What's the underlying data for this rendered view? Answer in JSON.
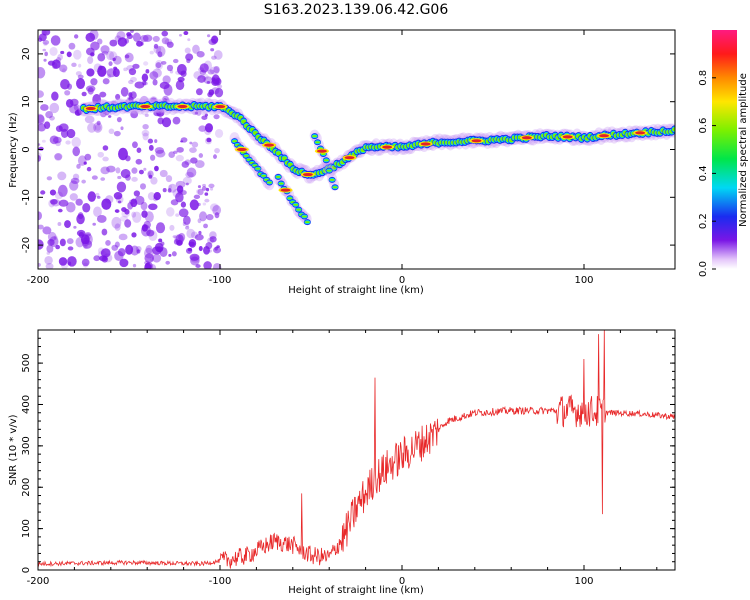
{
  "title": "S163.2023.139.06.42.G06",
  "colors": {
    "snr_line": "#e8292a",
    "track_core": "#e0202a",
    "noise": "#7a16e6"
  },
  "chart_data": [
    {
      "type": "heatmap",
      "xlabel": "Height of straight line (km)",
      "ylabel": "Frequency (Hz)",
      "xlim": [
        -200,
        150
      ],
      "ylim": [
        -25,
        25
      ],
      "x_ticks": [
        -200,
        -100,
        0,
        100
      ],
      "y_ticks": [
        20,
        10,
        0,
        -10,
        -20
      ],
      "colorbar": {
        "label": "Normalized spectral amplitude",
        "range": [
          0.0,
          1.0
        ],
        "ticks": [
          "0.0",
          "0.2",
          "0.4",
          "0.6",
          "0.8"
        ],
        "colormap": "rainbow (purple-blue-cyan-green-yellow-red-magenta)"
      },
      "main_track": [
        {
          "x": -175,
          "f": 8.5
        },
        {
          "x": -150,
          "f": 9.0
        },
        {
          "x": -125,
          "f": 9.0
        },
        {
          "x": -100,
          "f": 9.0
        },
        {
          "x": -90,
          "f": 7.0
        },
        {
          "x": -80,
          "f": 3.0
        },
        {
          "x": -70,
          "f": 0.0
        },
        {
          "x": -60,
          "f": -4.0
        },
        {
          "x": -50,
          "f": -5.5
        },
        {
          "x": -40,
          "f": -4.0
        },
        {
          "x": -30,
          "f": -2.0
        },
        {
          "x": -20,
          "f": 0.5
        },
        {
          "x": 0,
          "f": 0.5
        },
        {
          "x": 20,
          "f": 1.5
        },
        {
          "x": 40,
          "f": 1.8
        },
        {
          "x": 60,
          "f": 2.2
        },
        {
          "x": 80,
          "f": 2.8
        },
        {
          "x": 100,
          "f": 2.5
        },
        {
          "x": 120,
          "f": 3.2
        },
        {
          "x": 150,
          "f": 4.0
        }
      ],
      "secondary_tracks": [
        [
          {
            "x": -92,
            "f": 2.0
          },
          {
            "x": -82,
            "f": -3.0
          },
          {
            "x": -72,
            "f": -7.5
          }
        ],
        [
          {
            "x": -68,
            "f": -6.0
          },
          {
            "x": -60,
            "f": -11.0
          },
          {
            "x": -52,
            "f": -15.0
          }
        ],
        [
          {
            "x": -48,
            "f": 3.0
          },
          {
            "x": -42,
            "f": -2.0
          },
          {
            "x": -36,
            "f": -9.0
          }
        ]
      ],
      "noise_region": [
        -200,
        -100
      ]
    },
    {
      "type": "line",
      "xlabel": "Height of straight line (km)",
      "ylabel": "SNR (10 * v/v)",
      "xlim": [
        -200,
        150
      ],
      "ylim": [
        0,
        580
      ],
      "x_ticks": [
        -200,
        -100,
        0,
        100
      ],
      "y_ticks": [
        0,
        100,
        200,
        300,
        400,
        500
      ],
      "series": [
        {
          "envelope": [
            {
              "x": -200,
              "snr": 15
            },
            {
              "x": -150,
              "snr": 18
            },
            {
              "x": -110,
              "snr": 15
            },
            {
              "x": -95,
              "snr": 25
            },
            {
              "x": -85,
              "snr": 35
            },
            {
              "x": -70,
              "snr": 70
            },
            {
              "x": -60,
              "snr": 60
            },
            {
              "x": -50,
              "snr": 35
            },
            {
              "x": -40,
              "snr": 30
            },
            {
              "x": -32,
              "snr": 80
            },
            {
              "x": -25,
              "snr": 150
            },
            {
              "x": -15,
              "snr": 220
            },
            {
              "x": -5,
              "snr": 260
            },
            {
              "x": 5,
              "snr": 290
            },
            {
              "x": 15,
              "snr": 320
            },
            {
              "x": 25,
              "snr": 360
            },
            {
              "x": 40,
              "snr": 380
            },
            {
              "x": 60,
              "snr": 385
            },
            {
              "x": 80,
              "snr": 385
            },
            {
              "x": 100,
              "snr": 385
            },
            {
              "x": 115,
              "snr": 380
            },
            {
              "x": 130,
              "snr": 378
            },
            {
              "x": 150,
              "snr": 370
            }
          ],
          "spikes": [
            {
              "x": -55,
              "snr": 185
            },
            {
              "x": -15,
              "snr": 465
            },
            {
              "x": 100,
              "snr": 510
            },
            {
              "x": 108,
              "snr": 570
            },
            {
              "x": 111,
              "snr": 580
            },
            {
              "x": 110,
              "snr": 135
            }
          ]
        }
      ]
    }
  ]
}
